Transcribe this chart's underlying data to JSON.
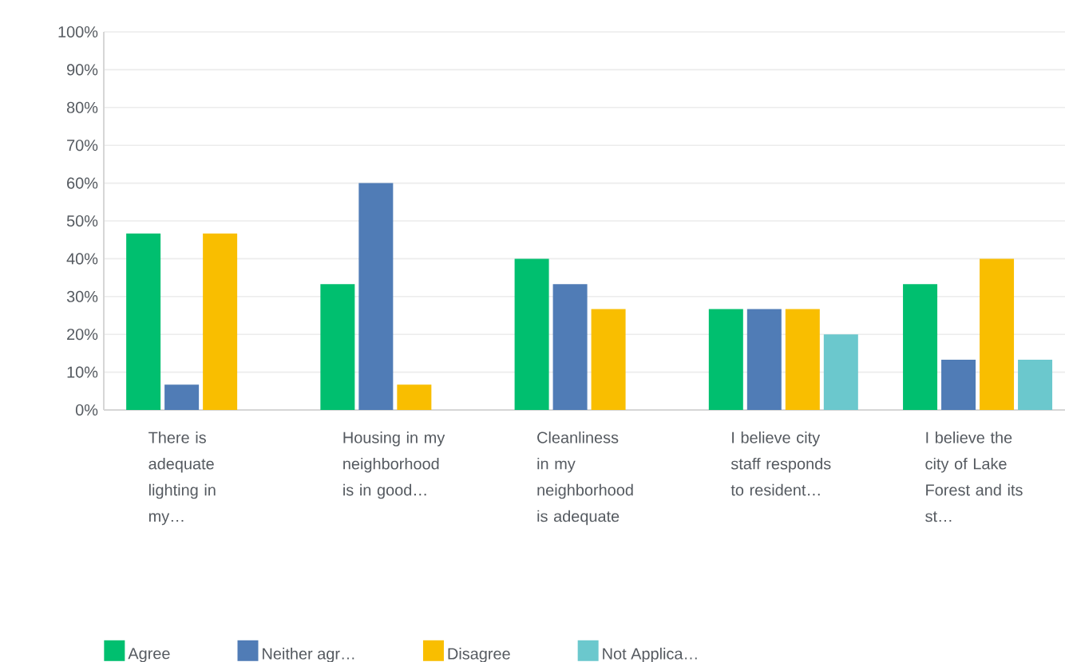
{
  "chart_data": {
    "type": "bar",
    "categories": [
      "There is adequate lighting in my…",
      "Housing in my neighborhood is in good…",
      "Cleanliness in my neighborhood is adequate",
      "I believe city staff responds to resident…",
      "I believe the city of Lake Forest and its st…"
    ],
    "series": [
      {
        "name": "Agree",
        "color": "#00bf6f",
        "values": [
          46.7,
          33.3,
          40,
          26.7,
          33.3
        ]
      },
      {
        "name": "Neither agr…",
        "color": "#507cb6",
        "values": [
          6.7,
          60,
          33.3,
          26.7,
          13.3
        ]
      },
      {
        "name": "Disagree",
        "color": "#f9be00",
        "values": [
          46.7,
          6.7,
          26.7,
          26.7,
          40
        ]
      },
      {
        "name": "Not Applica…",
        "color": "#6bc8cd",
        "values": [
          null,
          null,
          null,
          20,
          13.3
        ]
      }
    ],
    "ylim": [
      0,
      100
    ],
    "yticks": [
      {
        "value": 0,
        "label": "0%"
      },
      {
        "value": 10,
        "label": "10%"
      },
      {
        "value": 20,
        "label": "20%"
      },
      {
        "value": 30,
        "label": "30%"
      },
      {
        "value": 40,
        "label": "40%"
      },
      {
        "value": 50,
        "label": "50%"
      },
      {
        "value": 60,
        "label": "60%"
      },
      {
        "value": 70,
        "label": "70%"
      },
      {
        "value": 80,
        "label": "80%"
      },
      {
        "value": 90,
        "label": "90%"
      },
      {
        "value": 100,
        "label": "100%"
      }
    ],
    "grid": "y",
    "legend": "bottom"
  }
}
